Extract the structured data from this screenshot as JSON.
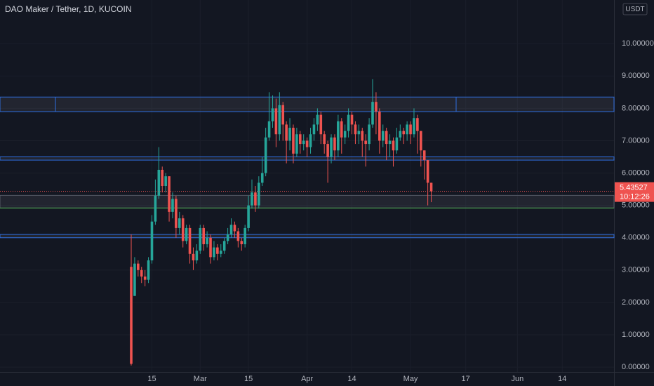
{
  "chart_data": {
    "type": "candlestick",
    "title": "DAO Maker / Tether, 1D, KUCOIN",
    "currency": "USDT",
    "countdown": "10:12:26",
    "up_color": "#26a69a",
    "down_color": "#ef5350",
    "level_color": "#2f6fe0",
    "support_color": "#4caf50",
    "ylim": [
      -0.15,
      11.35
    ],
    "yticks": [
      {
        "value": 0,
        "label": "0.00000"
      },
      {
        "value": 1,
        "label": "1.00000"
      },
      {
        "value": 2,
        "label": "2.00000"
      },
      {
        "value": 3,
        "label": "3.00000"
      },
      {
        "value": 4,
        "label": "4.00000"
      },
      {
        "value": 5,
        "label": "5.00000"
      },
      {
        "value": 6,
        "label": "6.00000"
      },
      {
        "value": 7,
        "label": "7.00000"
      },
      {
        "value": 8,
        "label": "8.00000"
      },
      {
        "value": 9,
        "label": "9.00000"
      },
      {
        "value": 10,
        "label": "10.00000"
      }
    ],
    "categories": [
      null,
      null,
      null,
      null,
      null,
      null,
      "15",
      null,
      null,
      null,
      null,
      null,
      null,
      null,
      null,
      null,
      null,
      null,
      null,
      null,
      "Mar",
      null,
      null,
      null,
      null,
      null,
      null,
      null,
      null,
      null,
      null,
      null,
      null,
      null,
      "15",
      null,
      null,
      null,
      null,
      null,
      null,
      null,
      null,
      null,
      null,
      null,
      null,
      null,
      null,
      null,
      null,
      "Apr",
      null,
      null,
      null,
      null,
      null,
      null,
      null,
      null,
      null,
      null,
      null,
      null,
      "14",
      null,
      null,
      null,
      null,
      null,
      null,
      null,
      null,
      null,
      null,
      null,
      null,
      null,
      null,
      null,
      null,
      "May",
      null,
      null,
      null,
      null,
      null,
      null,
      null,
      null,
      null,
      null,
      null,
      null,
      null,
      null,
      null,
      "17",
      null,
      null,
      null,
      null,
      null,
      null,
      null,
      null,
      null,
      null,
      null,
      null,
      null,
      null,
      "Jun",
      null,
      null,
      null,
      null,
      null,
      null,
      null,
      null,
      null,
      null,
      null,
      null,
      "14",
      null,
      null,
      null,
      null,
      null,
      null,
      null,
      null,
      null,
      null,
      null,
      null,
      null,
      null
    ],
    "open": [
      3.1,
      2.2,
      3.2,
      3.0,
      2.8,
      2.7,
      3.3,
      4.5,
      5.3,
      6.1,
      5.6,
      5.9,
      4.8,
      5.2,
      4.3,
      4.6,
      3.9,
      4.3,
      3.5,
      3.3,
      3.6,
      4.3,
      3.8,
      4.0,
      3.4,
      3.7,
      3.5,
      3.6,
      3.9,
      4.1,
      4.4,
      4.2,
      3.9,
      3.8,
      4.3,
      5.0,
      5.4,
      5.0,
      5.7,
      6.0,
      7.1,
      7.6,
      8.0,
      7.2,
      8.1,
      7.5,
      7.0,
      7.4,
      6.6,
      7.2,
      6.9,
      7.0,
      6.8,
      7.2,
      7.5,
      7.8,
      7.2,
      6.9,
      6.5,
      7.1,
      6.7,
      7.6,
      7.1,
      7.3,
      7.8,
      7.5,
      7.2,
      7.3,
      7.0,
      6.9,
      7.5,
      8.2,
      7.9,
      7.0,
      7.3,
      6.9,
      7.0,
      6.7,
      7.1,
      7.3,
      7.2,
      7.5,
      7.2,
      7.7,
      7.3,
      6.7,
      6.4,
      5.7,
      null,
      null,
      null,
      null,
      null,
      null,
      null,
      null,
      null,
      null,
      null,
      null,
      null,
      null,
      null,
      null,
      null,
      null,
      null,
      null,
      null,
      null,
      null,
      null,
      null,
      null,
      null,
      null,
      null,
      null,
      null,
      null,
      null,
      null,
      null,
      null,
      null,
      null,
      null,
      null,
      null,
      null,
      null,
      null,
      null,
      null,
      null,
      null,
      null,
      null,
      null,
      null
    ],
    "high": [
      4.1,
      3.4,
      3.3,
      3.1,
      3.0,
      3.4,
      4.7,
      5.8,
      6.8,
      6.2,
      6.0,
      5.9,
      5.4,
      5.3,
      4.8,
      4.7,
      4.4,
      4.4,
      3.7,
      3.8,
      4.4,
      4.4,
      4.2,
      4.1,
      3.9,
      3.8,
      3.8,
      4.0,
      4.3,
      4.6,
      4.5,
      4.3,
      4.0,
      4.4,
      5.3,
      5.8,
      5.6,
      5.9,
      6.5,
      7.4,
      8.5,
      8.4,
      8.3,
      8.5,
      8.2,
      7.6,
      7.7,
      7.5,
      7.4,
      7.3,
      7.2,
      7.1,
      7.4,
      7.7,
      8.0,
      7.9,
      7.3,
      7.0,
      7.2,
      7.2,
      7.8,
      7.7,
      7.5,
      8.0,
      7.9,
      7.6,
      7.5,
      7.4,
      7.2,
      7.7,
      8.9,
      8.5,
      8.0,
      7.5,
      7.4,
      7.2,
      7.1,
      7.4,
      7.5,
      7.4,
      7.6,
      7.6,
      8.0,
      7.8,
      7.3,
      6.7,
      6.4,
      5.7,
      null,
      null,
      null,
      null,
      null,
      null,
      null,
      null,
      null,
      null,
      null,
      null,
      null,
      null,
      null,
      null,
      null,
      null,
      null,
      null,
      null,
      null,
      null,
      null,
      null,
      null,
      null,
      null,
      null,
      null,
      null,
      null,
      null,
      null,
      null,
      null,
      null,
      null,
      null,
      null,
      null,
      null,
      null,
      null,
      null,
      null,
      null,
      null,
      null,
      null,
      null,
      null
    ],
    "low": [
      0.05,
      2.2,
      2.8,
      2.6,
      2.5,
      2.6,
      3.2,
      4.4,
      5.2,
      5.4,
      5.4,
      4.5,
      4.6,
      4.0,
      4.1,
      3.7,
      3.8,
      3.2,
      3.0,
      3.2,
      3.5,
      3.6,
      3.7,
      3.2,
      3.3,
      3.3,
      3.4,
      3.5,
      3.8,
      4.0,
      4.0,
      3.7,
      3.6,
      3.7,
      4.2,
      4.9,
      4.8,
      4.9,
      5.6,
      5.9,
      7.0,
      7.4,
      6.8,
      7.0,
      7.0,
      6.3,
      6.7,
      6.3,
      6.5,
      6.6,
      6.7,
      6.5,
      6.6,
      7.0,
      7.3,
      6.9,
      6.6,
      5.7,
      6.3,
      6.4,
      6.5,
      6.6,
      6.9,
      7.1,
      7.2,
      6.9,
      6.9,
      6.5,
      6.2,
      6.7,
      7.4,
      7.2,
      6.6,
      6.8,
      6.4,
      6.5,
      6.2,
      6.6,
      7.0,
      6.9,
      7.0,
      6.9,
      7.1,
      6.6,
      6.2,
      5.8,
      5.0,
      5.1,
      null,
      null,
      null,
      null,
      null,
      null,
      null,
      null,
      null,
      null,
      null,
      null,
      null,
      null,
      null,
      null,
      null,
      null,
      null,
      null,
      null,
      null,
      null,
      null,
      null,
      null,
      null,
      null,
      null,
      null,
      null,
      null,
      null,
      null,
      null,
      null,
      null,
      null,
      null,
      null,
      null,
      null,
      null,
      null,
      null,
      null,
      null,
      null,
      null,
      null,
      null,
      null
    ],
    "close": [
      0.1,
      3.2,
      3.0,
      2.8,
      2.7,
      3.3,
      4.5,
      5.3,
      6.1,
      5.6,
      5.9,
      4.8,
      5.2,
      4.3,
      4.6,
      3.9,
      4.3,
      3.5,
      3.3,
      3.6,
      4.3,
      3.8,
      4.0,
      3.4,
      3.7,
      3.5,
      3.6,
      3.9,
      4.1,
      4.4,
      4.2,
      3.9,
      3.8,
      4.3,
      5.0,
      5.4,
      5.0,
      5.7,
      6.0,
      7.1,
      7.6,
      8.0,
      7.2,
      8.1,
      7.5,
      7.0,
      7.4,
      6.6,
      7.2,
      6.9,
      7.0,
      6.8,
      7.2,
      7.5,
      7.8,
      7.2,
      6.9,
      6.5,
      7.1,
      6.7,
      7.6,
      7.1,
      7.3,
      7.8,
      7.5,
      7.2,
      7.3,
      7.0,
      6.9,
      7.5,
      8.2,
      7.9,
      7.0,
      7.3,
      6.9,
      7.0,
      6.7,
      7.1,
      7.3,
      7.2,
      7.5,
      7.2,
      7.7,
      7.3,
      6.7,
      6.4,
      5.7,
      5.43527,
      null,
      null,
      null,
      null,
      null,
      null,
      null,
      null,
      null,
      null,
      null,
      null,
      null,
      null,
      null,
      null,
      null,
      null,
      null,
      null,
      null,
      null,
      null,
      null,
      null,
      null,
      null,
      null,
      null,
      null,
      null,
      null,
      null,
      null,
      null,
      null,
      null,
      null,
      null,
      null,
      null,
      null,
      null,
      null,
      null,
      null,
      null,
      null,
      null,
      null,
      null,
      null
    ],
    "zones": [
      {
        "top": 8.35,
        "bottom": 7.9,
        "kind": "resistance"
      },
      {
        "top": 6.5,
        "bottom": 6.4,
        "kind": "resistance"
      },
      {
        "top": 5.31,
        "bottom": 4.92,
        "kind": "support"
      },
      {
        "top": 4.1,
        "bottom": 4.0,
        "kind": "resistance"
      }
    ]
  }
}
